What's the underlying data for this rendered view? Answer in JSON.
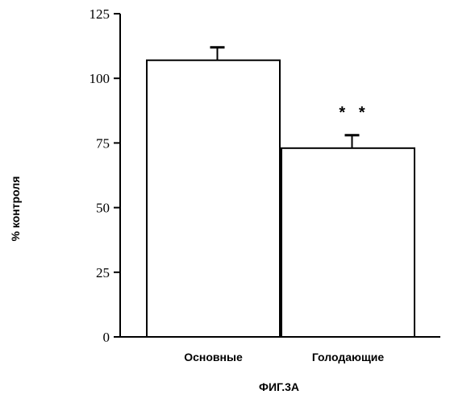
{
  "chart_data": {
    "type": "bar",
    "title": "",
    "xlabel": "",
    "ylabel": "% контроля",
    "categories": [
      "Основные",
      "Голодающие"
    ],
    "values": [
      107,
      73
    ],
    "error_bars": [
      5,
      5
    ],
    "ylim": [
      0,
      125
    ],
    "yticks": [
      0,
      25,
      50,
      75,
      100,
      125
    ],
    "ytick_labels": [
      "0",
      "25",
      "50",
      "75",
      "100",
      "125"
    ],
    "annotations": [
      {
        "category": "Голодающие",
        "text": "* *"
      }
    ],
    "grid": false,
    "bar_color": "#ffffff",
    "edge_color": "#000000"
  },
  "figure": {
    "caption": "ФИГ.3А"
  }
}
